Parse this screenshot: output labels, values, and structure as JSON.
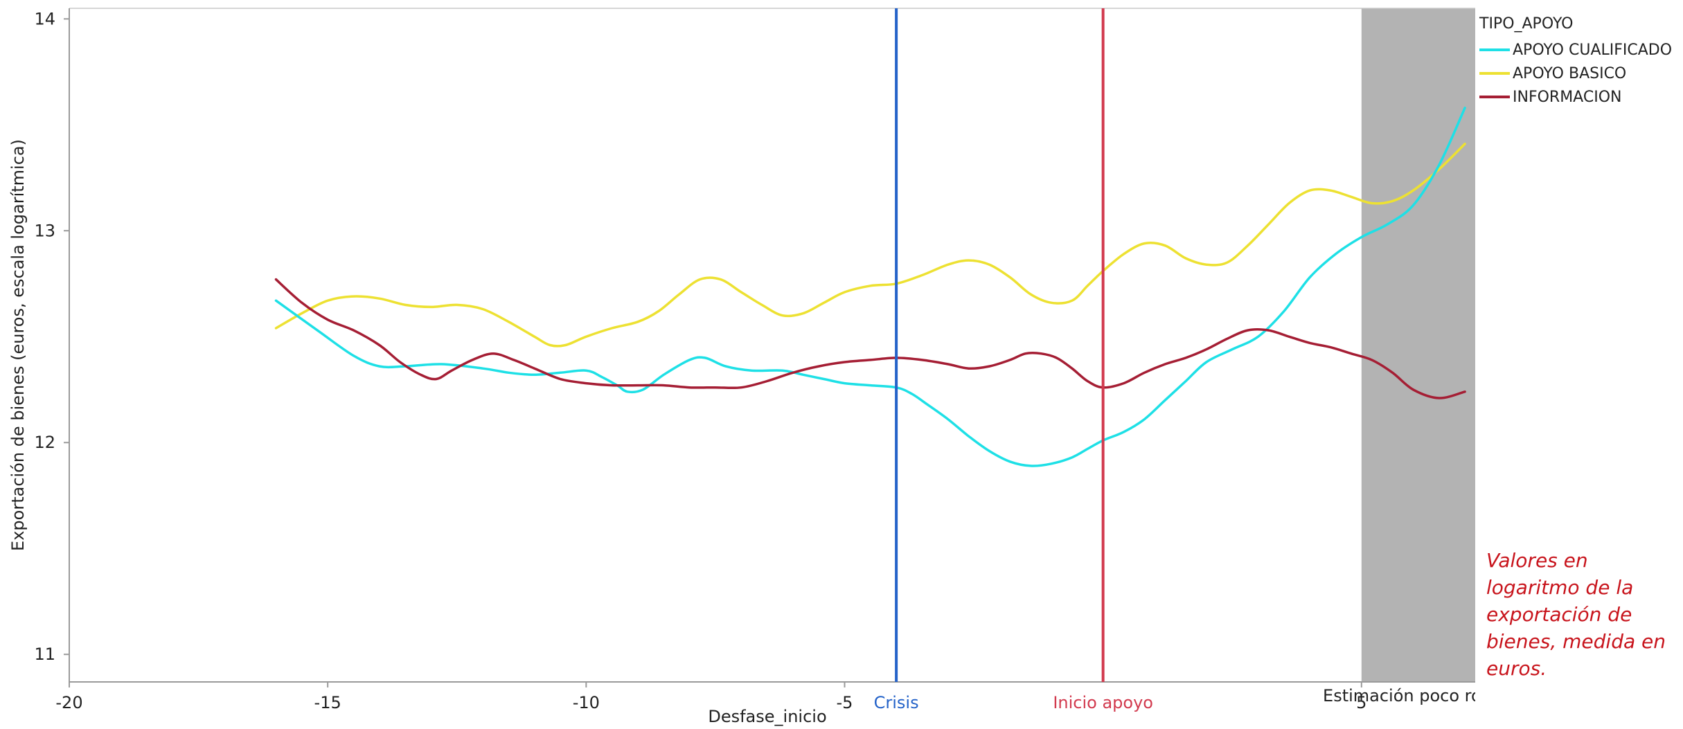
{
  "chart_data": {
    "type": "line",
    "title": "",
    "xlabel": "Desfase_inicio",
    "ylabel": "Exportación de bienes (euros, escala logarítmica)",
    "xlim": [
      -20,
      7.2
    ],
    "ylim": [
      10.87,
      14.05
    ],
    "x_ticks": [
      "-20",
      "-15",
      "-10",
      "-5",
      "5"
    ],
    "y_ticks": [
      "11",
      "12",
      "13",
      "14"
    ],
    "grid": false,
    "legend_position": "right",
    "legend_title": "TIPO_APOYO",
    "shaded_region": {
      "x_from": 5,
      "x_to": 7.2,
      "label": "Estimación poco robusta",
      "color": "#b3b3b3"
    },
    "reference_lines": [
      {
        "x": -4,
        "label": "Crisis",
        "color": "#2563c9"
      },
      {
        "x": 0,
        "label": "Inicio apoyo",
        "color": "#d23a4e"
      }
    ],
    "series": [
      {
        "name": "APOYO CUALIFICADO",
        "color": "#1ee0e6",
        "x": [
          -16,
          -15.2,
          -14.5,
          -14,
          -13.5,
          -12.8,
          -12,
          -11.5,
          -11,
          -10.5,
          -10,
          -9.7,
          -9.4,
          -9.2,
          -8.9,
          -8.5,
          -8,
          -7.7,
          -7.3,
          -6.8,
          -6.2,
          -5.8,
          -5.4,
          -5,
          -4.5,
          -4,
          -3.7,
          -3.4,
          -3,
          -2.6,
          -2.2,
          -1.8,
          -1.4,
          -1,
          -0.6,
          -0.3,
          0,
          0.4,
          0.8,
          1.2,
          1.6,
          2,
          2.5,
          3,
          3.5,
          4,
          4.5,
          5,
          5.5,
          6,
          6.5,
          7
        ],
        "y": [
          12.67,
          12.53,
          12.41,
          12.36,
          12.36,
          12.37,
          12.35,
          12.33,
          12.32,
          12.33,
          12.34,
          12.31,
          12.27,
          12.24,
          12.25,
          12.32,
          12.39,
          12.4,
          12.36,
          12.34,
          12.34,
          12.32,
          12.3,
          12.28,
          12.27,
          12.26,
          12.23,
          12.18,
          12.11,
          12.03,
          11.96,
          11.91,
          11.89,
          11.9,
          11.93,
          11.97,
          12.01,
          12.05,
          12.11,
          12.2,
          12.29,
          12.38,
          12.44,
          12.5,
          12.62,
          12.78,
          12.89,
          12.97,
          13.03,
          13.12,
          13.31,
          13.58
        ]
      },
      {
        "name": "APOYO BASICO",
        "color": "#ede132",
        "x": [
          -16,
          -15.5,
          -15,
          -14.5,
          -14,
          -13.5,
          -13,
          -12.5,
          -12,
          -11.5,
          -11,
          -10.7,
          -10.4,
          -10,
          -9.5,
          -9,
          -8.6,
          -8.2,
          -7.8,
          -7.4,
          -7,
          -6.6,
          -6.2,
          -5.8,
          -5.4,
          -5,
          -4.5,
          -4,
          -3.5,
          -3,
          -2.6,
          -2.2,
          -1.8,
          -1.4,
          -1,
          -0.6,
          -0.3,
          0,
          0.4,
          0.8,
          1.2,
          1.6,
          2,
          2.4,
          2.8,
          3.2,
          3.6,
          4,
          4.4,
          4.8,
          5.2,
          5.6,
          6,
          6.5,
          7
        ],
        "y": [
          12.54,
          12.61,
          12.67,
          12.69,
          12.68,
          12.65,
          12.64,
          12.65,
          12.63,
          12.57,
          12.5,
          12.46,
          12.46,
          12.5,
          12.54,
          12.57,
          12.62,
          12.7,
          12.77,
          12.77,
          12.71,
          12.65,
          12.6,
          12.61,
          12.66,
          12.71,
          12.74,
          12.75,
          12.79,
          12.84,
          12.86,
          12.84,
          12.78,
          12.7,
          12.66,
          12.67,
          12.74,
          12.81,
          12.89,
          12.94,
          12.93,
          12.87,
          12.84,
          12.85,
          12.93,
          13.03,
          13.13,
          13.19,
          13.19,
          13.16,
          13.13,
          13.14,
          13.19,
          13.29,
          13.41
        ]
      },
      {
        "name": "INFORMACION",
        "color": "#a51e34",
        "x": [
          -16,
          -15.5,
          -15,
          -14.5,
          -14,
          -13.6,
          -13.2,
          -12.9,
          -12.6,
          -12.2,
          -11.8,
          -11.4,
          -11,
          -10.5,
          -10,
          -9.5,
          -9,
          -8.5,
          -8,
          -7.5,
          -7,
          -6.5,
          -6,
          -5.5,
          -5,
          -4.5,
          -4,
          -3.5,
          -3,
          -2.6,
          -2.2,
          -1.8,
          -1.5,
          -1.2,
          -0.9,
          -0.6,
          -0.3,
          0,
          0.4,
          0.8,
          1.2,
          1.6,
          2,
          2.4,
          2.8,
          3.2,
          3.6,
          4,
          4.4,
          4.8,
          5.2,
          5.6,
          6,
          6.5,
          7
        ],
        "y": [
          12.77,
          12.66,
          12.58,
          12.53,
          12.46,
          12.38,
          12.32,
          12.3,
          12.34,
          12.39,
          12.42,
          12.39,
          12.35,
          12.3,
          12.28,
          12.27,
          12.27,
          12.27,
          12.26,
          12.26,
          12.26,
          12.29,
          12.33,
          12.36,
          12.38,
          12.39,
          12.4,
          12.39,
          12.37,
          12.35,
          12.36,
          12.39,
          12.42,
          12.42,
          12.4,
          12.35,
          12.29,
          12.26,
          12.28,
          12.33,
          12.37,
          12.4,
          12.44,
          12.49,
          12.53,
          12.53,
          12.5,
          12.47,
          12.45,
          12.42,
          12.39,
          12.33,
          12.25,
          12.21,
          12.24
        ]
      }
    ]
  },
  "note": "Valores en logaritmo de la exportación de bienes, medida en euros."
}
